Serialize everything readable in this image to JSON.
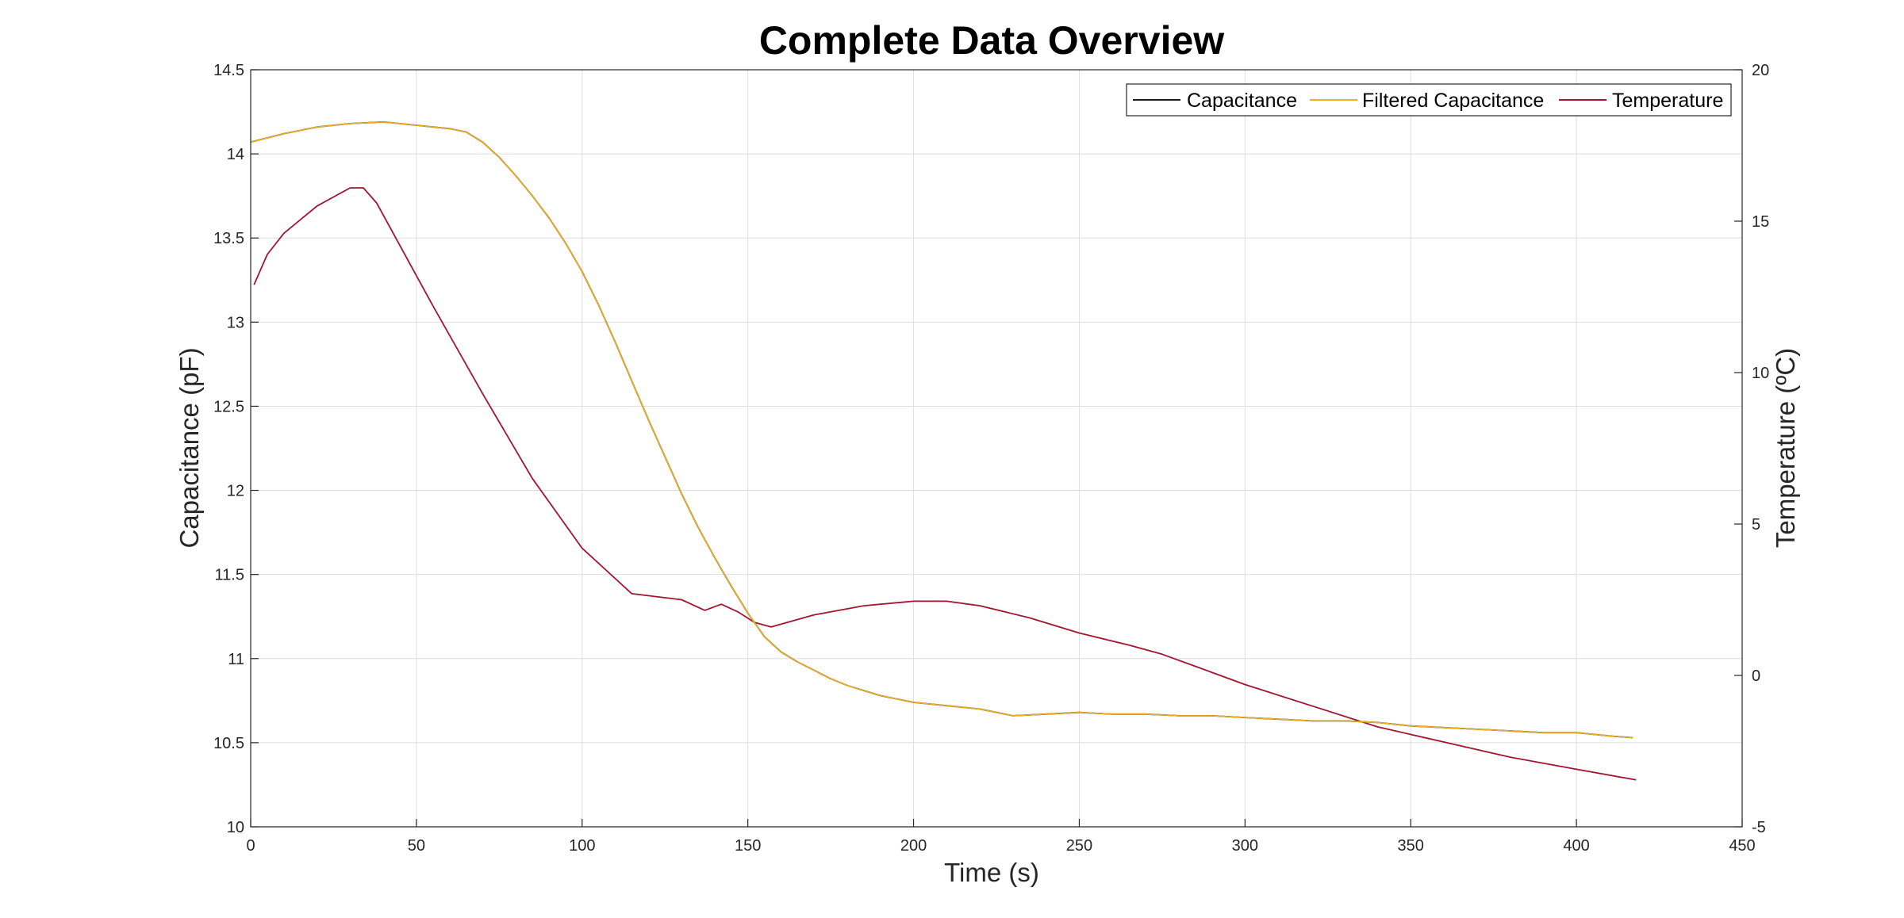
{
  "chart_data": {
    "type": "line",
    "title": "Complete Data Overview",
    "xlabel": "Time (s)",
    "ylabel_left": "Capacitance (pF)",
    "ylabel_right": "Temperature (ºC)",
    "xlim": [
      0,
      450
    ],
    "ylim_left": [
      10,
      14.5
    ],
    "ylim_right": [
      -5,
      20
    ],
    "xticks": [
      "0",
      "50",
      "100",
      "150",
      "200",
      "250",
      "300",
      "350",
      "400",
      "450"
    ],
    "yticks_left": [
      "10",
      "10.5",
      "11",
      "11.5",
      "12",
      "12.5",
      "13",
      "13.5",
      "14",
      "14.5"
    ],
    "yticks_right": [
      "-5",
      "0",
      "5",
      "10",
      "15",
      "20"
    ],
    "grid": true,
    "legend_position": "top-right",
    "legend": [
      "Capacitance",
      "Filtered Capacitance",
      "Temperature"
    ],
    "colors": {
      "capacitance": "#1a1a1a",
      "filtered": "#EDB120",
      "temperature": "#A2142F"
    },
    "series": [
      {
        "name": "Capacitance",
        "axis": "left",
        "x": [
          0,
          10,
          20,
          30,
          40,
          50,
          60,
          65,
          70,
          75,
          80,
          85,
          90,
          95,
          100,
          105,
          110,
          115,
          120,
          125,
          130,
          135,
          140,
          145,
          150,
          155,
          160,
          165,
          170,
          175,
          180,
          185,
          190,
          195,
          200,
          210,
          220,
          230,
          240,
          250,
          260,
          270,
          280,
          290,
          300,
          310,
          320,
          330,
          340,
          350,
          360,
          370,
          380,
          390,
          400,
          410,
          417
        ],
        "y": [
          14.07,
          14.12,
          14.16,
          14.18,
          14.19,
          14.17,
          14.15,
          14.13,
          14.07,
          13.98,
          13.87,
          13.75,
          13.62,
          13.47,
          13.3,
          13.1,
          12.88,
          12.65,
          12.42,
          12.2,
          11.98,
          11.78,
          11.6,
          11.43,
          11.27,
          11.13,
          11.04,
          10.98,
          10.93,
          10.88,
          10.84,
          10.81,
          10.78,
          10.76,
          10.74,
          10.72,
          10.7,
          10.66,
          10.67,
          10.68,
          10.67,
          10.67,
          10.66,
          10.66,
          10.65,
          10.64,
          10.63,
          10.63,
          10.62,
          10.6,
          10.59,
          10.58,
          10.57,
          10.56,
          10.56,
          10.54,
          10.53
        ]
      },
      {
        "name": "Filtered Capacitance",
        "axis": "left",
        "x": [
          0,
          10,
          20,
          30,
          40,
          50,
          60,
          65,
          70,
          75,
          80,
          85,
          90,
          95,
          100,
          105,
          110,
          115,
          120,
          125,
          130,
          135,
          140,
          145,
          150,
          155,
          160,
          165,
          170,
          175,
          180,
          185,
          190,
          195,
          200,
          210,
          220,
          230,
          240,
          250,
          260,
          270,
          280,
          290,
          300,
          310,
          320,
          330,
          340,
          350,
          360,
          370,
          380,
          390,
          400,
          410,
          417
        ],
        "y": [
          14.07,
          14.12,
          14.16,
          14.18,
          14.19,
          14.17,
          14.15,
          14.13,
          14.07,
          13.98,
          13.87,
          13.75,
          13.62,
          13.47,
          13.3,
          13.1,
          12.88,
          12.65,
          12.42,
          12.2,
          11.98,
          11.78,
          11.6,
          11.43,
          11.27,
          11.13,
          11.04,
          10.98,
          10.93,
          10.88,
          10.84,
          10.81,
          10.78,
          10.76,
          10.74,
          10.72,
          10.7,
          10.66,
          10.67,
          10.68,
          10.67,
          10.67,
          10.66,
          10.66,
          10.65,
          10.64,
          10.63,
          10.63,
          10.62,
          10.6,
          10.59,
          10.58,
          10.57,
          10.56,
          10.56,
          10.54,
          10.53
        ]
      },
      {
        "name": "Temperature",
        "axis": "right",
        "x": [
          1,
          5,
          10,
          20,
          30,
          34,
          38,
          45,
          55,
          70,
          85,
          100,
          115,
          130,
          137,
          142,
          147,
          152,
          157,
          170,
          185,
          200,
          210,
          220,
          235,
          250,
          265,
          275,
          285,
          300,
          320,
          340,
          360,
          380,
          400,
          418
        ],
        "y": [
          12.9,
          13.9,
          14.6,
          15.5,
          16.1,
          16.1,
          15.6,
          14.2,
          12.2,
          9.3,
          6.5,
          4.2,
          2.7,
          2.5,
          2.15,
          2.35,
          2.1,
          1.75,
          1.6,
          2.0,
          2.3,
          2.45,
          2.45,
          2.3,
          1.9,
          1.4,
          1.0,
          0.7,
          0.3,
          -0.3,
          -1.0,
          -1.7,
          -2.2,
          -2.7,
          -3.1,
          -3.45
        ]
      }
    ]
  }
}
